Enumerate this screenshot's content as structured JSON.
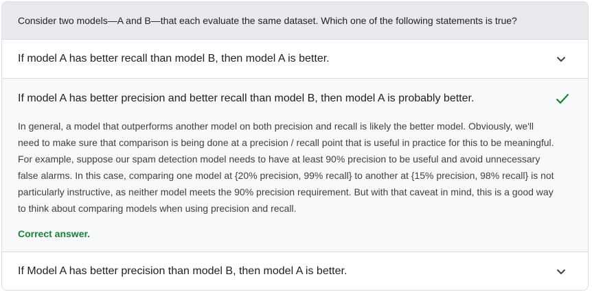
{
  "question": "Consider two models—A and B—that each evaluate the same dataset. Which one of the following statements is true?",
  "options": [
    {
      "label": "If model A has better recall than model B, then model A is better.",
      "icon": "chevron-down-icon"
    },
    {
      "label": "If model A has better precision and better recall than model B, then model A is probably better.",
      "icon": "checkmark-icon",
      "explanation": "In general, a model that outperforms another model on both precision and recall is likely the better model. Obviously, we'll need to make sure that comparison is being done at a precision / recall point that is useful in practice for this to be meaningful. For example, suppose our spam detection model needs to have at least 90% precision to be useful and avoid unnecessary false alarms. In this case, comparing one model at {20% precision, 99% recall} to another at {15% precision, 98% recall} is not particularly instructive, as neither model meets the 90% precision requirement. But with that caveat in mind, this is a good way to think about comparing models when using precision and recall.",
      "verdict": "Correct answer."
    },
    {
      "label": "If Model A has better precision than model B, then model A is better.",
      "icon": "chevron-down-icon"
    }
  ],
  "colors": {
    "question_bg": "#e8eaed",
    "correct_green": "#188038",
    "border": "#dadce0"
  }
}
